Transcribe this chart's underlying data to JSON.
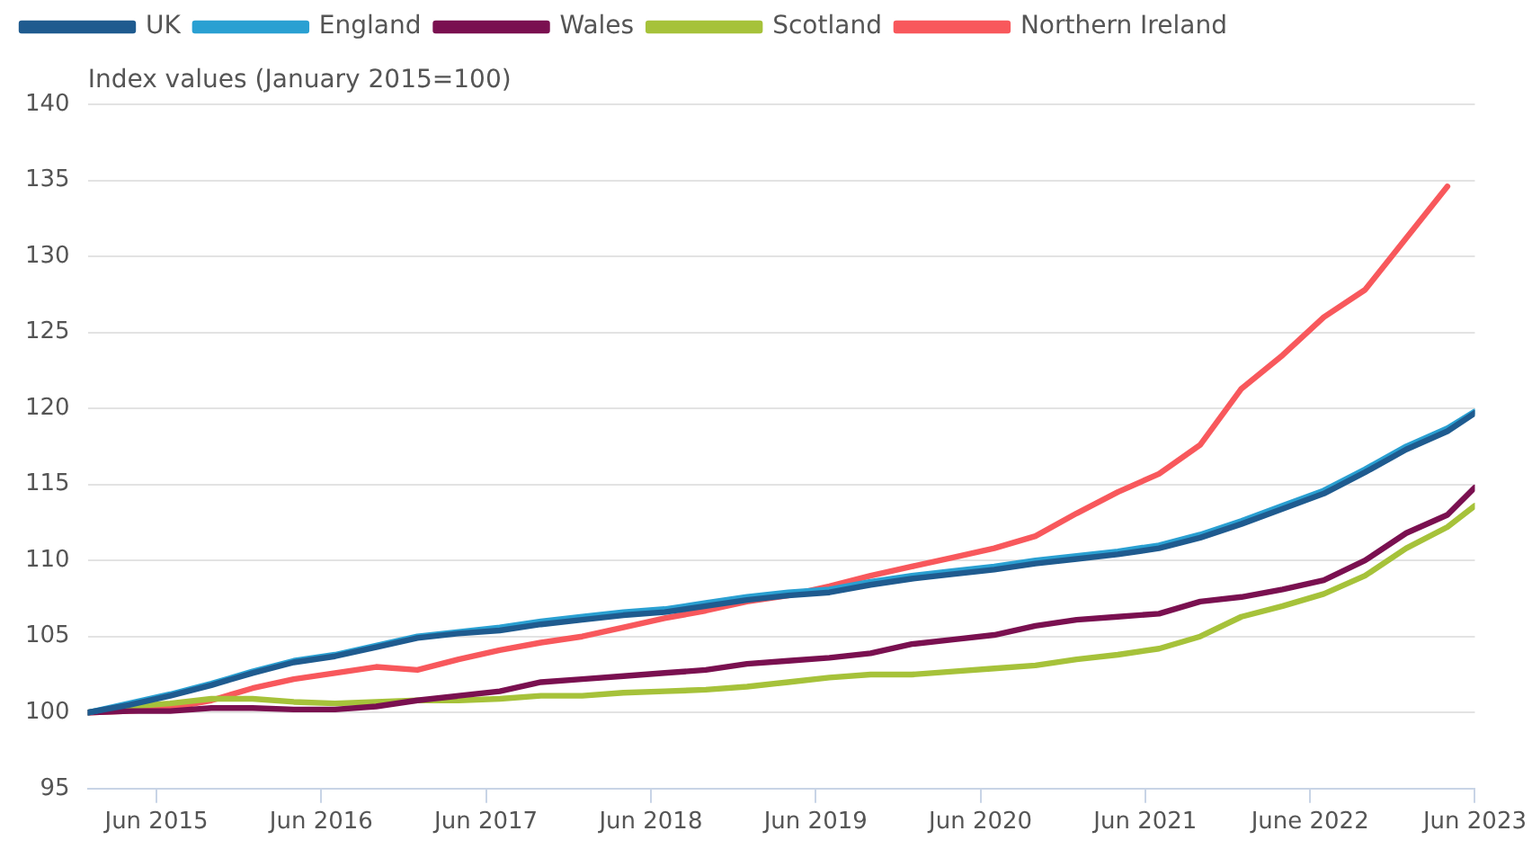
{
  "chart_data": {
    "type": "line",
    "ylabel": "Index values (January 2015=100)",
    "x": [
      "2015-01",
      "2015-04",
      "2015-07",
      "2015-10",
      "2016-01",
      "2016-04",
      "2016-07",
      "2016-10",
      "2017-01",
      "2017-04",
      "2017-07",
      "2017-10",
      "2018-01",
      "2018-04",
      "2018-07",
      "2018-10",
      "2019-01",
      "2019-04",
      "2019-07",
      "2019-10",
      "2020-01",
      "2020-04",
      "2020-07",
      "2020-10",
      "2021-01",
      "2021-04",
      "2021-07",
      "2021-10",
      "2022-01",
      "2022-04",
      "2022-07",
      "2022-10",
      "2023-01",
      "2023-04",
      "2023-06"
    ],
    "series": [
      {
        "name": "UK",
        "color": "#1f5b8f",
        "values": [
          100,
          100.5,
          101.1,
          101.8,
          102.6,
          103.3,
          103.7,
          104.3,
          104.9,
          105.2,
          105.4,
          105.8,
          106.1,
          106.4,
          106.6,
          107.0,
          107.4,
          107.7,
          107.9,
          108.4,
          108.8,
          109.1,
          109.4,
          109.8,
          110.1,
          110.4,
          110.8,
          111.5,
          112.4,
          113.4,
          114.4,
          115.8,
          117.3,
          118.5,
          119.7
        ]
      },
      {
        "name": "England",
        "color": "#2aa0d2",
        "values": [
          100,
          100.6,
          101.2,
          101.9,
          102.7,
          103.4,
          103.8,
          104.4,
          105.0,
          105.3,
          105.6,
          106.0,
          106.3,
          106.6,
          106.8,
          107.2,
          107.6,
          107.9,
          108.1,
          108.6,
          109.0,
          109.3,
          109.6,
          110.0,
          110.3,
          110.6,
          111.0,
          111.7,
          112.6,
          113.6,
          114.6,
          116.0,
          117.5,
          118.7,
          119.8
        ]
      },
      {
        "name": "Wales",
        "color": "#7a1050",
        "values": [
          100,
          100.1,
          100.1,
          100.3,
          100.3,
          100.2,
          100.2,
          100.4,
          100.8,
          101.1,
          101.4,
          102.0,
          102.2,
          102.4,
          102.6,
          102.8,
          103.2,
          103.4,
          103.6,
          103.9,
          104.5,
          104.8,
          105.1,
          105.7,
          106.1,
          106.3,
          106.5,
          107.3,
          107.6,
          108.1,
          108.7,
          110.0,
          111.8,
          113.0,
          114.8
        ]
      },
      {
        "name": "Scotland",
        "color": "#a6c23a",
        "values": [
          100,
          100.4,
          100.6,
          100.9,
          100.9,
          100.7,
          100.6,
          100.7,
          100.8,
          100.8,
          100.9,
          101.1,
          101.1,
          101.3,
          101.4,
          101.5,
          101.7,
          102.0,
          102.3,
          102.5,
          102.5,
          102.7,
          102.9,
          103.1,
          103.5,
          103.8,
          104.2,
          105.0,
          106.3,
          107.0,
          107.8,
          109.0,
          110.8,
          112.2,
          113.6
        ]
      },
      {
        "name": "Northern Ireland",
        "color": "#f8585c",
        "values": [
          100,
          100.1,
          100.3,
          100.8,
          101.6,
          102.2,
          102.6,
          103.0,
          102.8,
          103.5,
          104.1,
          104.6,
          105.0,
          105.6,
          106.2,
          106.7,
          107.3,
          107.7,
          108.3,
          109.0,
          109.6,
          110.2,
          110.8,
          111.6,
          113.1,
          114.5,
          115.7,
          117.6,
          121.3,
          123.5,
          126.0,
          127.8,
          131.2,
          134.6,
          null
        ]
      }
    ],
    "xlim": [
      "2015-01",
      "2023-06"
    ],
    "xticks": [
      {
        "value": "2015-06",
        "label": "Jun 2015"
      },
      {
        "value": "2016-06",
        "label": "Jun 2016"
      },
      {
        "value": "2017-06",
        "label": "Jun 2017"
      },
      {
        "value": "2018-06",
        "label": "Jun 2018"
      },
      {
        "value": "2019-06",
        "label": "Jun 2019"
      },
      {
        "value": "2020-06",
        "label": "Jun 2020"
      },
      {
        "value": "2021-06",
        "label": "Jun 2021"
      },
      {
        "value": "2022-06",
        "label": "June 2022"
      },
      {
        "value": "2023-06",
        "label": "Jun 2023"
      }
    ],
    "ylim": [
      95,
      140
    ],
    "yticks": [
      95,
      100,
      105,
      110,
      115,
      120,
      125,
      130,
      135,
      140
    ],
    "grid": "y",
    "legend": "top",
    "marker": "none",
    "line_style": "solid"
  }
}
